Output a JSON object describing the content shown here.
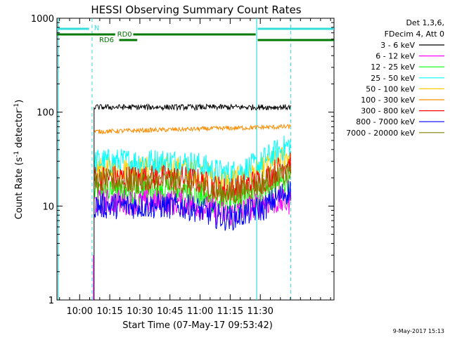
{
  "chart_data": {
    "type": "line",
    "title": "HESSI Observing Summary Count Rates",
    "xlabel": "Start Time (07-May-17 09:53:42)",
    "ylabel_main": "Count Rate (s",
    "ylabel_sup": "-1",
    "ylabel_mid": " detector",
    "ylabel_sup2": "-1",
    "ylabel_end": ")",
    "yscale": "log",
    "ylim": [
      1,
      1000
    ],
    "xlim_minutes": [
      -5,
      133
    ],
    "x_tick_labels": [
      "10:00",
      "10:15",
      "10:30",
      "10:45",
      "11:00",
      "11:15",
      "11:30"
    ],
    "y_tick_labels": [
      "1",
      "10",
      "100",
      "1000"
    ],
    "legend_header": [
      "Det 1,3,6,",
      "FDecim 4, Att 0"
    ],
    "series": [
      {
        "name": "3 - 6 keV",
        "color": "#000000",
        "start": 113,
        "end": 113,
        "plateau": 112
      },
      {
        "name": "6 - 12 keV",
        "color": "#ff00ff",
        "start": 11,
        "end": 11,
        "plateau": 11
      },
      {
        "name": "12 - 25 keV",
        "color": "#00ff00",
        "start": 14,
        "end": 20,
        "plateau": 14
      },
      {
        "name": "25 - 50 keV",
        "color": "#00ffff",
        "start": 30,
        "end": 45,
        "plateau": 30
      },
      {
        "name": "50 - 100 keV",
        "color": "#ffcc00",
        "start": 25,
        "end": 35,
        "plateau": 25
      },
      {
        "name": "100 - 300 keV",
        "color": "#ff8c00",
        "start": 62,
        "end": 70,
        "plateau": 62
      },
      {
        "name": "300 - 800 keV",
        "color": "#ff0000",
        "start": 18,
        "end": 30,
        "plateau": 20
      },
      {
        "name": "800 - 7000 keV",
        "color": "#0000ff",
        "start": 9,
        "end": 15,
        "plateau": 10
      },
      {
        "name": "7000 - 20000 keV",
        "color": "#808000",
        "start": 18,
        "end": 22,
        "plateau": 18
      }
    ],
    "annotations": {
      "N": "N",
      "RD0": "RD0",
      "RD6": "RD6"
    },
    "timestamp": "9-May-2017 15:13"
  }
}
